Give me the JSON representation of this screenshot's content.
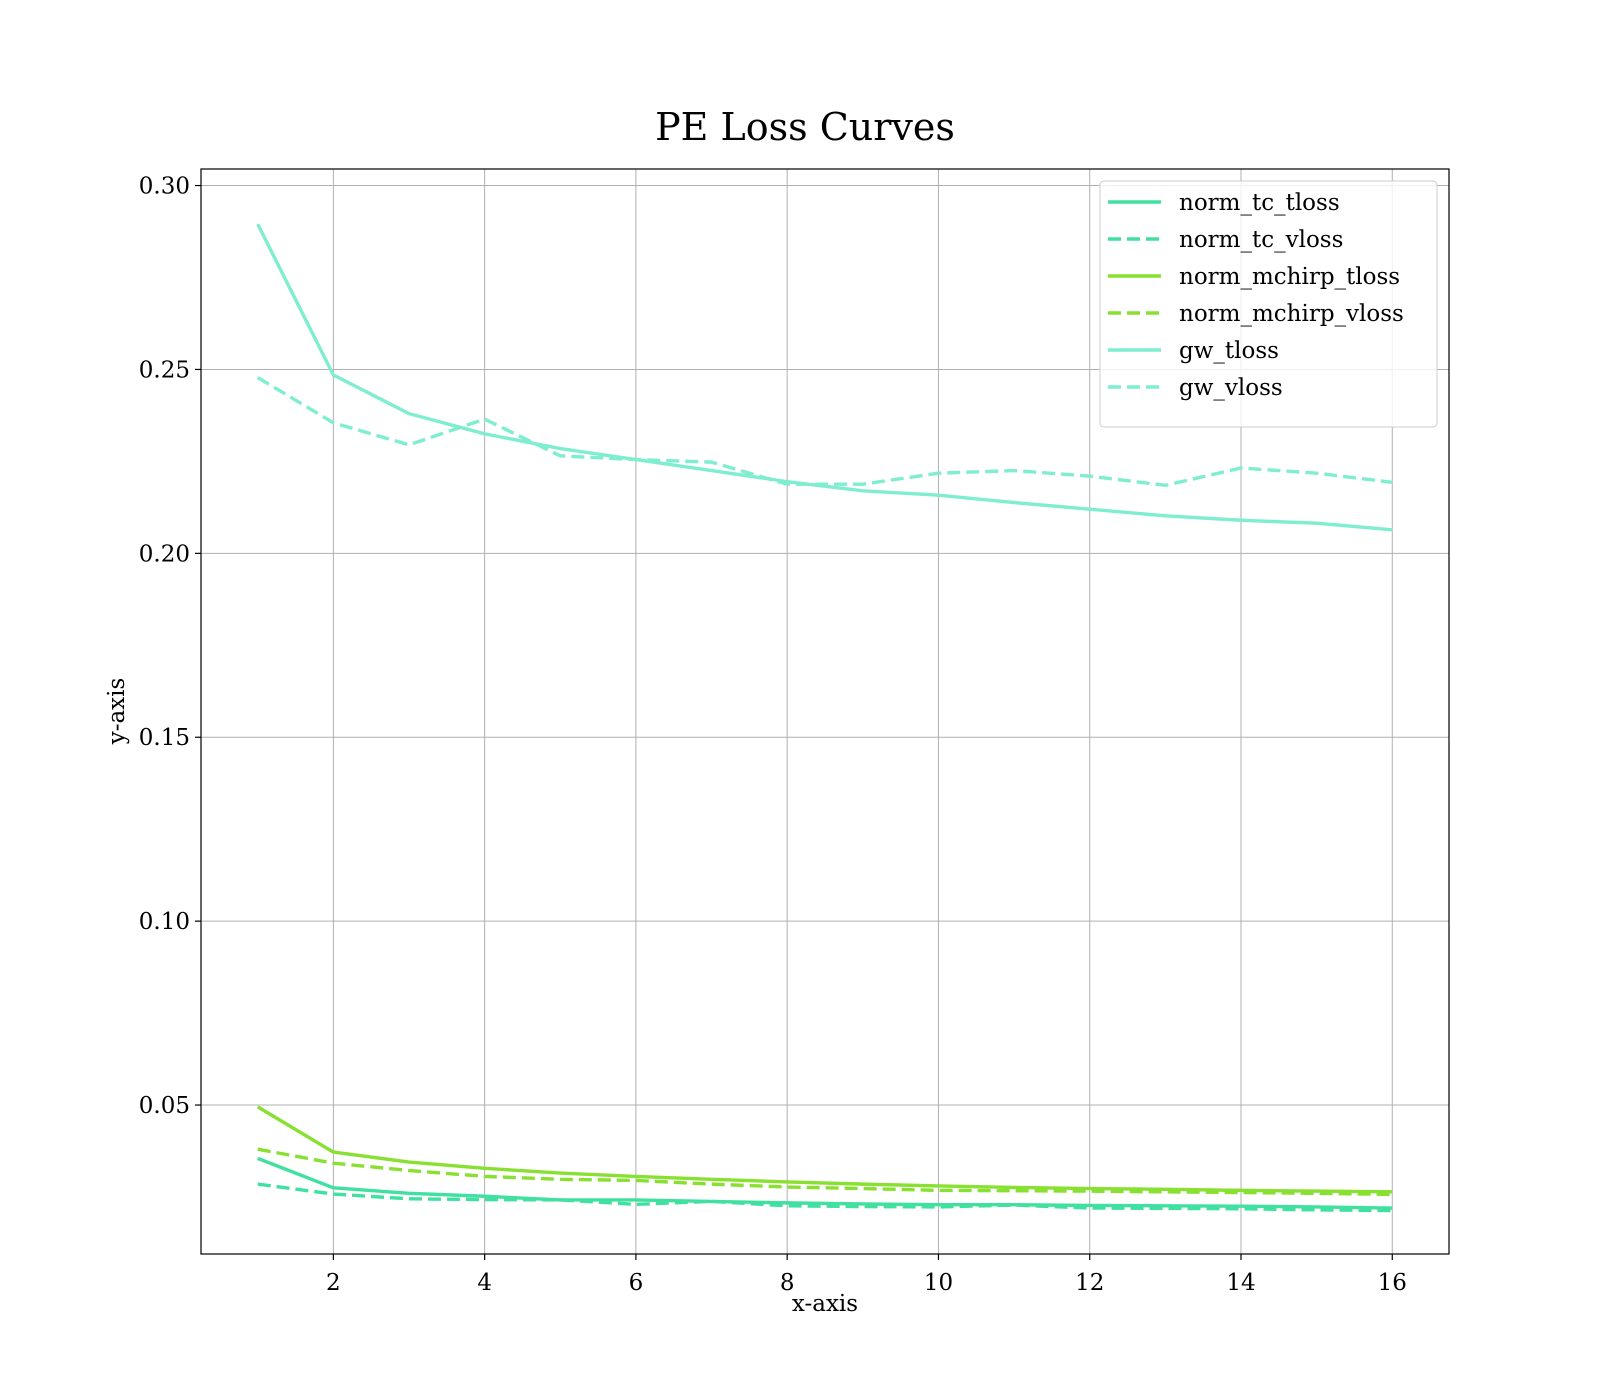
{
  "chart_data": {
    "type": "line",
    "title": "PE Loss Curves",
    "xlabel": "x-axis",
    "ylabel": "y-axis",
    "xlim": [
      0.25,
      16.75
    ],
    "ylim": [
      0.0095,
      0.3045
    ],
    "xticks": [
      2,
      4,
      6,
      8,
      10,
      12,
      14,
      16
    ],
    "xtick_labels": [
      "2",
      "4",
      "6",
      "8",
      "10",
      "12",
      "14",
      "16"
    ],
    "yticks": [
      0.05,
      0.1,
      0.15,
      0.2,
      0.25,
      0.3
    ],
    "ytick_labels": [
      "0.05",
      "0.10",
      "0.15",
      "0.20",
      "0.25",
      "0.30"
    ],
    "grid": true,
    "legend_position": "upper-right",
    "x": [
      1,
      2,
      3,
      4,
      5,
      6,
      7,
      8,
      9,
      10,
      11,
      12,
      13,
      14,
      15,
      16
    ],
    "series": [
      {
        "name": "norm_tc_tloss",
        "color": "#40E0A0",
        "dash": "solid",
        "values": [
          0.0355,
          0.0275,
          0.026,
          0.0252,
          0.0242,
          0.0242,
          0.0238,
          0.0234,
          0.0231,
          0.0229,
          0.0229,
          0.0227,
          0.0226,
          0.0225,
          0.0223,
          0.022
        ]
      },
      {
        "name": "norm_tc_vloss",
        "color": "#40E0A0",
        "dash": "dashed",
        "values": [
          0.0285,
          0.0258,
          0.0245,
          0.0243,
          0.0242,
          0.023,
          0.0238,
          0.0226,
          0.0224,
          0.0223,
          0.0228,
          0.022,
          0.0219,
          0.0218,
          0.0215,
          0.0213
        ]
      },
      {
        "name": "norm_mchirp_tloss",
        "color": "#88E031",
        "dash": "solid",
        "values": [
          0.0495,
          0.0372,
          0.0345,
          0.0328,
          0.0315,
          0.0306,
          0.0298,
          0.0291,
          0.0285,
          0.028,
          0.0276,
          0.0273,
          0.0271,
          0.0268,
          0.0266,
          0.0264
        ]
      },
      {
        "name": "norm_mchirp_vloss",
        "color": "#88E031",
        "dash": "dashed",
        "values": [
          0.038,
          0.0342,
          0.0322,
          0.0306,
          0.0298,
          0.0295,
          0.0285,
          0.0277,
          0.0273,
          0.0268,
          0.0267,
          0.0266,
          0.0264,
          0.0262,
          0.026,
          0.0257
        ]
      },
      {
        "name": "gw_tloss",
        "color": "#7FEDD0",
        "dash": "solid",
        "values": [
          0.2895,
          0.2485,
          0.238,
          0.2325,
          0.2285,
          0.2255,
          0.2225,
          0.2195,
          0.217,
          0.2158,
          0.2138,
          0.212,
          0.2102,
          0.209,
          0.2082,
          0.2064
        ]
      },
      {
        "name": "gw_vloss",
        "color": "#7FEDD0",
        "dash": "dashed",
        "values": [
          0.2478,
          0.2355,
          0.2295,
          0.2365,
          0.2265,
          0.2255,
          0.2248,
          0.2188,
          0.2188,
          0.2218,
          0.2225,
          0.221,
          0.2185,
          0.2232,
          0.2218,
          0.2193
        ]
      }
    ]
  }
}
